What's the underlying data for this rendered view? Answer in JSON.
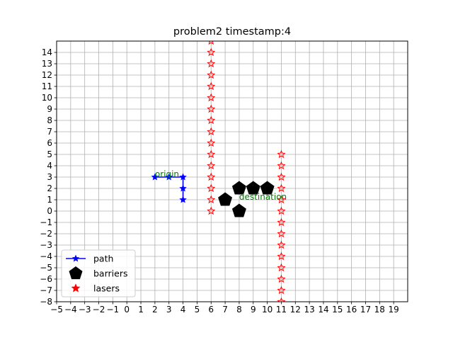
{
  "chart_data": {
    "type": "scatter",
    "title": "problem2 timestamp:4",
    "xlabel": "",
    "ylabel": "",
    "xlim": [
      -5,
      20
    ],
    "ylim": [
      -8,
      15
    ],
    "xticks": [
      -5,
      -4,
      -3,
      -2,
      -1,
      0,
      1,
      2,
      3,
      4,
      5,
      6,
      7,
      8,
      9,
      10,
      11,
      12,
      13,
      14,
      15,
      16,
      17,
      18,
      19
    ],
    "yticks": [
      -8,
      -7,
      -6,
      -5,
      -4,
      -3,
      -2,
      -1,
      0,
      1,
      2,
      3,
      4,
      5,
      6,
      7,
      8,
      9,
      10,
      11,
      12,
      13,
      14
    ],
    "grid": true,
    "legend_position": "lower-left",
    "series": [
      {
        "name": "path",
        "style": "line-star",
        "color": "#0000ff",
        "points": [
          [
            2,
            3
          ],
          [
            3,
            3
          ],
          [
            4,
            3
          ],
          [
            4,
            2
          ],
          [
            4,
            1
          ]
        ]
      },
      {
        "name": "barriers",
        "style": "pentagon",
        "color": "#000000",
        "points": [
          [
            7,
            1
          ],
          [
            8,
            2
          ],
          [
            9,
            2
          ],
          [
            10,
            2
          ],
          [
            8,
            0
          ]
        ]
      },
      {
        "name": "lasers",
        "style": "star",
        "color": "#ff0000",
        "points": [
          [
            6,
            0
          ],
          [
            6,
            1
          ],
          [
            6,
            2
          ],
          [
            6,
            3
          ],
          [
            6,
            4
          ],
          [
            6,
            5
          ],
          [
            6,
            6
          ],
          [
            6,
            7
          ],
          [
            6,
            8
          ],
          [
            6,
            9
          ],
          [
            6,
            10
          ],
          [
            6,
            11
          ],
          [
            6,
            12
          ],
          [
            6,
            13
          ],
          [
            6,
            14
          ],
          [
            6,
            15
          ],
          [
            11,
            5
          ],
          [
            11,
            4
          ],
          [
            11,
            3
          ],
          [
            11,
            2
          ],
          [
            11,
            1
          ],
          [
            11,
            0
          ],
          [
            11,
            -1
          ],
          [
            11,
            -2
          ],
          [
            11,
            -3
          ],
          [
            11,
            -4
          ],
          [
            11,
            -5
          ],
          [
            11,
            -6
          ],
          [
            11,
            -7
          ],
          [
            11,
            -8
          ]
        ]
      }
    ],
    "annotations": [
      {
        "text": "origin",
        "x": 2,
        "y": 3,
        "color": "#008000"
      },
      {
        "text": "destination",
        "x": 8,
        "y": 1,
        "color": "#008000"
      }
    ]
  }
}
